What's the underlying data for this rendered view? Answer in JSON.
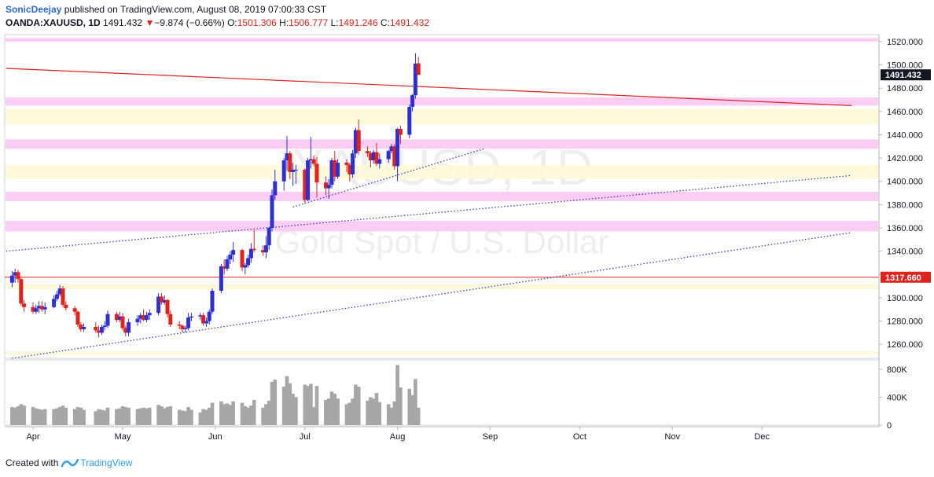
{
  "header": {
    "author": "SonicDeejay",
    "published_text": "published on TradingView.com, August 08, 2019 07:00:33 CST",
    "symbol": "OANDA:XAUUSD, 1D",
    "last": "1491.432",
    "change_arrow": "▼",
    "change": "−9.874 (−0.66%)",
    "o_label": "O:",
    "o_value": "1501.306",
    "h_label": "H:",
    "h_value": "1506.777",
    "l_label": "L:",
    "l_value": "1491.246",
    "c_label": "C:",
    "c_value": "1491.432"
  },
  "watermark": {
    "symbol": "XAUUSD, 1D",
    "name": "Gold Spot / U.S. Dollar"
  },
  "footer": {
    "created_with": "Created with",
    "brand": "TradingView"
  },
  "colors": {
    "up": "#2b2fd4",
    "down": "#e0221b",
    "pink_zone": "#fbc6f3",
    "yellow_zone": "#fdf8d6",
    "red_line": "#e0221b",
    "trend_dotted": "#3340c8",
    "volume": "#a6a6a6",
    "last_price_label": "#131722",
    "level_label": "#e0221b"
  },
  "chart_data": {
    "type": "candlestick",
    "price_axis": {
      "ylim": [
        1248,
        1526
      ],
      "ticks": [
        "1520.000",
        "1500.000",
        "1480.000",
        "1460.000",
        "1440.000",
        "1420.000",
        "1400.000",
        "1380.000",
        "1360.000",
        "1340.000",
        "1320.000",
        "1300.000",
        "1280.000",
        "1260.000"
      ]
    },
    "volume_axis": {
      "ylim": [
        0,
        900000
      ],
      "ticks": [
        {
          "v": 800000,
          "label": "800K"
        },
        {
          "v": 400000,
          "label": "400K"
        },
        {
          "v": 0,
          "label": "0"
        }
      ]
    },
    "time_axis": {
      "labels": [
        {
          "label": "Apr",
          "date": "2019-04-01"
        },
        {
          "label": "May",
          "date": "2019-05-01"
        },
        {
          "label": "Jun",
          "date": "2019-06-01"
        },
        {
          "label": "Jul",
          "date": "2019-07-01"
        },
        {
          "label": "Aug",
          "date": "2019-08-01"
        },
        {
          "label": "Sep",
          "date": "2019-09-01"
        },
        {
          "label": "Oct",
          "date": "2019-10-01"
        },
        {
          "label": "Nov",
          "date": "2019-11-01"
        },
        {
          "label": "Dec",
          "date": "2019-12-01"
        }
      ]
    },
    "price_labels": [
      {
        "value": "1491.432",
        "price": 1491.432,
        "kind": "last"
      },
      {
        "value": "1317.660",
        "price": 1317.66,
        "kind": "level"
      }
    ],
    "zones": [
      {
        "kind": "pink",
        "from": 1520,
        "to": 1523
      },
      {
        "kind": "pink",
        "from": 1465,
        "to": 1472
      },
      {
        "kind": "yellow",
        "from": 1449,
        "to": 1462
      },
      {
        "kind": "pink",
        "from": 1428,
        "to": 1436
      },
      {
        "kind": "yellow",
        "from": 1402,
        "to": 1414
      },
      {
        "kind": "pink",
        "from": 1383,
        "to": 1391
      },
      {
        "kind": "pink",
        "from": 1357,
        "to": 1366
      },
      {
        "kind": "yellow",
        "from": 1307,
        "to": 1312
      },
      {
        "kind": "yellow",
        "from": 1251,
        "to": 1254
      }
    ],
    "lines": [
      {
        "kind": "resistance",
        "from": {
          "date": "2019-03-23",
          "price": 1497
        },
        "to": {
          "date": "2019-12-31",
          "price": 1465
        }
      },
      {
        "kind": "horizontal",
        "price": 1317.66
      },
      {
        "kind": "trend",
        "from": {
          "date": "2019-03-23",
          "price": 1340
        },
        "to": {
          "date": "2019-12-31",
          "price": 1405
        }
      },
      {
        "kind": "trend",
        "from": {
          "date": "2019-03-25",
          "price": 1248
        },
        "to": {
          "date": "2019-12-31",
          "price": 1356
        }
      },
      {
        "kind": "trend",
        "from": {
          "date": "2019-06-27",
          "price": 1378
        },
        "to": {
          "date": "2019-08-30",
          "price": 1428
        }
      }
    ],
    "series": [
      {
        "date": "2019-03-25",
        "o": 1313,
        "h": 1323,
        "l": 1309,
        "c": 1319,
        "v": 260000
      },
      {
        "date": "2019-03-26",
        "o": 1319,
        "h": 1325,
        "l": 1313,
        "c": 1322,
        "v": 250000
      },
      {
        "date": "2019-03-27",
        "o": 1322,
        "h": 1324,
        "l": 1313,
        "c": 1316,
        "v": 270000
      },
      {
        "date": "2019-03-28",
        "o": 1316,
        "h": 1317,
        "l": 1293,
        "c": 1295,
        "v": 300000
      },
      {
        "date": "2019-03-29",
        "o": 1295,
        "h": 1298,
        "l": 1288,
        "c": 1292,
        "v": 280000
      },
      {
        "date": "2019-04-01",
        "o": 1292,
        "h": 1296,
        "l": 1286,
        "c": 1288,
        "v": 260000
      },
      {
        "date": "2019-04-02",
        "o": 1288,
        "h": 1294,
        "l": 1286,
        "c": 1291,
        "v": 240000
      },
      {
        "date": "2019-04-03",
        "o": 1291,
        "h": 1297,
        "l": 1287,
        "c": 1293,
        "v": 230000
      },
      {
        "date": "2019-04-04",
        "o": 1293,
        "h": 1297,
        "l": 1288,
        "c": 1290,
        "v": 220000
      },
      {
        "date": "2019-04-05",
        "o": 1290,
        "h": 1296,
        "l": 1286,
        "c": 1292,
        "v": 230000
      },
      {
        "date": "2019-04-08",
        "o": 1292,
        "h": 1302,
        "l": 1291,
        "c": 1299,
        "v": 230000
      },
      {
        "date": "2019-04-09",
        "o": 1299,
        "h": 1306,
        "l": 1297,
        "c": 1303,
        "v": 240000
      },
      {
        "date": "2019-04-10",
        "o": 1303,
        "h": 1311,
        "l": 1301,
        "c": 1308,
        "v": 260000
      },
      {
        "date": "2019-04-11",
        "o": 1308,
        "h": 1310,
        "l": 1292,
        "c": 1294,
        "v": 280000
      },
      {
        "date": "2019-04-12",
        "o": 1294,
        "h": 1297,
        "l": 1289,
        "c": 1291,
        "v": 250000
      },
      {
        "date": "2019-04-15",
        "o": 1291,
        "h": 1293,
        "l": 1285,
        "c": 1288,
        "v": 230000
      },
      {
        "date": "2019-04-16",
        "o": 1288,
        "h": 1289,
        "l": 1275,
        "c": 1277,
        "v": 260000
      },
      {
        "date": "2019-04-17",
        "o": 1277,
        "h": 1279,
        "l": 1271,
        "c": 1273,
        "v": 250000
      },
      {
        "date": "2019-04-18",
        "o": 1273,
        "h": 1278,
        "l": 1271,
        "c": 1275,
        "v": 220000
      },
      {
        "date": "2019-04-22",
        "o": 1275,
        "h": 1279,
        "l": 1270,
        "c": 1272,
        "v": 200000
      },
      {
        "date": "2019-04-23",
        "o": 1272,
        "h": 1276,
        "l": 1266,
        "c": 1270,
        "v": 230000
      },
      {
        "date": "2019-04-24",
        "o": 1270,
        "h": 1277,
        "l": 1268,
        "c": 1275,
        "v": 220000
      },
      {
        "date": "2019-04-25",
        "o": 1275,
        "h": 1280,
        "l": 1272,
        "c": 1276,
        "v": 210000
      },
      {
        "date": "2019-04-26",
        "o": 1276,
        "h": 1289,
        "l": 1274,
        "c": 1286,
        "v": 250000
      },
      {
        "date": "2019-04-29",
        "o": 1286,
        "h": 1288,
        "l": 1279,
        "c": 1281,
        "v": 230000
      },
      {
        "date": "2019-04-30",
        "o": 1281,
        "h": 1288,
        "l": 1279,
        "c": 1284,
        "v": 240000
      },
      {
        "date": "2019-05-01",
        "o": 1284,
        "h": 1287,
        "l": 1272,
        "c": 1274,
        "v": 270000
      },
      {
        "date": "2019-05-02",
        "o": 1274,
        "h": 1276,
        "l": 1267,
        "c": 1270,
        "v": 260000
      },
      {
        "date": "2019-05-03",
        "o": 1270,
        "h": 1282,
        "l": 1267,
        "c": 1279,
        "v": 250000
      },
      {
        "date": "2019-05-06",
        "o": 1279,
        "h": 1285,
        "l": 1276,
        "c": 1282,
        "v": 230000
      },
      {
        "date": "2019-05-07",
        "o": 1282,
        "h": 1287,
        "l": 1278,
        "c": 1285,
        "v": 240000
      },
      {
        "date": "2019-05-08",
        "o": 1285,
        "h": 1290,
        "l": 1280,
        "c": 1281,
        "v": 250000
      },
      {
        "date": "2019-05-09",
        "o": 1281,
        "h": 1288,
        "l": 1279,
        "c": 1285,
        "v": 240000
      },
      {
        "date": "2019-05-10",
        "o": 1285,
        "h": 1290,
        "l": 1281,
        "c": 1287,
        "v": 250000
      },
      {
        "date": "2019-05-13",
        "o": 1287,
        "h": 1304,
        "l": 1285,
        "c": 1301,
        "v": 290000
      },
      {
        "date": "2019-05-14",
        "o": 1301,
        "h": 1304,
        "l": 1294,
        "c": 1296,
        "v": 270000
      },
      {
        "date": "2019-05-15",
        "o": 1296,
        "h": 1302,
        "l": 1294,
        "c": 1298,
        "v": 240000
      },
      {
        "date": "2019-05-16",
        "o": 1298,
        "h": 1299,
        "l": 1283,
        "c": 1286,
        "v": 260000
      },
      {
        "date": "2019-05-17",
        "o": 1286,
        "h": 1289,
        "l": 1275,
        "c": 1277,
        "v": 270000
      },
      {
        "date": "2019-05-20",
        "o": 1277,
        "h": 1280,
        "l": 1273,
        "c": 1276,
        "v": 220000
      },
      {
        "date": "2019-05-21",
        "o": 1276,
        "h": 1277,
        "l": 1270,
        "c": 1273,
        "v": 210000
      },
      {
        "date": "2019-05-22",
        "o": 1273,
        "h": 1276,
        "l": 1270,
        "c": 1274,
        "v": 200000
      },
      {
        "date": "2019-05-23",
        "o": 1274,
        "h": 1287,
        "l": 1272,
        "c": 1283,
        "v": 260000
      },
      {
        "date": "2019-05-24",
        "o": 1283,
        "h": 1287,
        "l": 1280,
        "c": 1284,
        "v": 220000
      },
      {
        "date": "2019-05-27",
        "o": 1284,
        "h": 1287,
        "l": 1281,
        "c": 1285,
        "v": 180000
      },
      {
        "date": "2019-05-28",
        "o": 1285,
        "h": 1287,
        "l": 1276,
        "c": 1278,
        "v": 230000
      },
      {
        "date": "2019-05-29",
        "o": 1278,
        "h": 1283,
        "l": 1275,
        "c": 1280,
        "v": 220000
      },
      {
        "date": "2019-05-30",
        "o": 1280,
        "h": 1290,
        "l": 1277,
        "c": 1288,
        "v": 250000
      },
      {
        "date": "2019-05-31",
        "o": 1288,
        "h": 1308,
        "l": 1286,
        "c": 1306,
        "v": 320000
      },
      {
        "date": "2019-06-03",
        "o": 1306,
        "h": 1329,
        "l": 1304,
        "c": 1327,
        "v": 340000
      },
      {
        "date": "2019-06-04",
        "o": 1327,
        "h": 1333,
        "l": 1320,
        "c": 1325,
        "v": 300000
      },
      {
        "date": "2019-06-05",
        "o": 1325,
        "h": 1336,
        "l": 1323,
        "c": 1333,
        "v": 310000
      },
      {
        "date": "2019-06-06",
        "o": 1333,
        "h": 1340,
        "l": 1329,
        "c": 1337,
        "v": 290000
      },
      {
        "date": "2019-06-07",
        "o": 1337,
        "h": 1348,
        "l": 1331,
        "c": 1341,
        "v": 340000
      },
      {
        "date": "2019-06-10",
        "o": 1341,
        "h": 1342,
        "l": 1323,
        "c": 1326,
        "v": 320000
      },
      {
        "date": "2019-06-11",
        "o": 1326,
        "h": 1330,
        "l": 1320,
        "c": 1328,
        "v": 270000
      },
      {
        "date": "2019-06-12",
        "o": 1328,
        "h": 1337,
        "l": 1326,
        "c": 1334,
        "v": 250000
      },
      {
        "date": "2019-06-13",
        "o": 1334,
        "h": 1347,
        "l": 1330,
        "c": 1342,
        "v": 280000
      },
      {
        "date": "2019-06-14",
        "o": 1342,
        "h": 1358,
        "l": 1339,
        "c": 1341,
        "v": 360000
      },
      {
        "date": "2019-06-17",
        "o": 1341,
        "h": 1345,
        "l": 1336,
        "c": 1339,
        "v": 250000
      },
      {
        "date": "2019-06-18",
        "o": 1339,
        "h": 1353,
        "l": 1334,
        "c": 1345,
        "v": 300000
      },
      {
        "date": "2019-06-19",
        "o": 1345,
        "h": 1361,
        "l": 1341,
        "c": 1360,
        "v": 350000
      },
      {
        "date": "2019-06-20",
        "o": 1360,
        "h": 1393,
        "l": 1357,
        "c": 1388,
        "v": 620000
      },
      {
        "date": "2019-06-21",
        "o": 1388,
        "h": 1410,
        "l": 1384,
        "c": 1400,
        "v": 650000
      },
      {
        "date": "2019-06-24",
        "o": 1400,
        "h": 1420,
        "l": 1392,
        "c": 1418,
        "v": 550000
      },
      {
        "date": "2019-06-25",
        "o": 1418,
        "h": 1439,
        "l": 1409,
        "c": 1424,
        "v": 700000
      },
      {
        "date": "2019-06-26",
        "o": 1424,
        "h": 1426,
        "l": 1402,
        "c": 1408,
        "v": 600000
      },
      {
        "date": "2019-06-27",
        "o": 1408,
        "h": 1416,
        "l": 1396,
        "c": 1410,
        "v": 450000
      },
      {
        "date": "2019-06-28",
        "o": 1410,
        "h": 1414,
        "l": 1398,
        "c": 1410,
        "v": 400000
      },
      {
        "date": "2019-07-01",
        "o": 1410,
        "h": 1411,
        "l": 1381,
        "c": 1384,
        "v": 580000
      },
      {
        "date": "2019-07-02",
        "o": 1384,
        "h": 1420,
        "l": 1383,
        "c": 1418,
        "v": 560000
      },
      {
        "date": "2019-07-03",
        "o": 1418,
        "h": 1438,
        "l": 1411,
        "c": 1419,
        "v": 590000
      },
      {
        "date": "2019-07-04",
        "o": 1419,
        "h": 1422,
        "l": 1413,
        "c": 1415,
        "v": 260000
      },
      {
        "date": "2019-07-05",
        "o": 1415,
        "h": 1421,
        "l": 1386,
        "c": 1399,
        "v": 560000
      },
      {
        "date": "2019-07-08",
        "o": 1399,
        "h": 1404,
        "l": 1388,
        "c": 1394,
        "v": 360000
      },
      {
        "date": "2019-07-09",
        "o": 1394,
        "h": 1402,
        "l": 1385,
        "c": 1397,
        "v": 380000
      },
      {
        "date": "2019-07-10",
        "o": 1397,
        "h": 1420,
        "l": 1394,
        "c": 1418,
        "v": 480000
      },
      {
        "date": "2019-07-11",
        "o": 1418,
        "h": 1426,
        "l": 1400,
        "c": 1404,
        "v": 450000
      },
      {
        "date": "2019-07-12",
        "o": 1404,
        "h": 1419,
        "l": 1402,
        "c": 1416,
        "v": 380000
      },
      {
        "date": "2019-07-15",
        "o": 1416,
        "h": 1419,
        "l": 1408,
        "c": 1414,
        "v": 300000
      },
      {
        "date": "2019-07-16",
        "o": 1414,
        "h": 1416,
        "l": 1400,
        "c": 1406,
        "v": 320000
      },
      {
        "date": "2019-07-17",
        "o": 1406,
        "h": 1427,
        "l": 1403,
        "c": 1424,
        "v": 380000
      },
      {
        "date": "2019-07-18",
        "o": 1424,
        "h": 1446,
        "l": 1420,
        "c": 1444,
        "v": 580000
      },
      {
        "date": "2019-07-19",
        "o": 1444,
        "h": 1453,
        "l": 1423,
        "c": 1426,
        "v": 550000
      },
      {
        "date": "2019-07-22",
        "o": 1426,
        "h": 1430,
        "l": 1421,
        "c": 1424,
        "v": 350000
      },
      {
        "date": "2019-07-23",
        "o": 1424,
        "h": 1426,
        "l": 1412,
        "c": 1418,
        "v": 400000
      },
      {
        "date": "2019-07-24",
        "o": 1418,
        "h": 1427,
        "l": 1415,
        "c": 1425,
        "v": 380000
      },
      {
        "date": "2019-07-25",
        "o": 1425,
        "h": 1433,
        "l": 1413,
        "c": 1415,
        "v": 460000
      },
      {
        "date": "2019-07-26",
        "o": 1415,
        "h": 1424,
        "l": 1411,
        "c": 1419,
        "v": 330000
      },
      {
        "date": "2019-07-29",
        "o": 1419,
        "h": 1427,
        "l": 1416,
        "c": 1426,
        "v": 300000
      },
      {
        "date": "2019-07-30",
        "o": 1426,
        "h": 1432,
        "l": 1424,
        "c": 1430,
        "v": 250000
      },
      {
        "date": "2019-07-31",
        "o": 1430,
        "h": 1432,
        "l": 1410,
        "c": 1413,
        "v": 340000
      },
      {
        "date": "2019-08-01",
        "o": 1413,
        "h": 1446,
        "l": 1400,
        "c": 1445,
        "v": 860000
      },
      {
        "date": "2019-08-02",
        "o": 1445,
        "h": 1448,
        "l": 1432,
        "c": 1440,
        "v": 540000
      },
      {
        "date": "2019-08-05",
        "o": 1440,
        "h": 1466,
        "l": 1437,
        "c": 1464,
        "v": 520000
      },
      {
        "date": "2019-08-06",
        "o": 1464,
        "h": 1475,
        "l": 1460,
        "c": 1474,
        "v": 430000
      },
      {
        "date": "2019-08-07",
        "o": 1474,
        "h": 1510,
        "l": 1471,
        "c": 1501,
        "v": 660000
      },
      {
        "date": "2019-08-08",
        "o": 1501.306,
        "h": 1506.777,
        "l": 1491.246,
        "c": 1491.432,
        "v": 250000
      }
    ]
  }
}
